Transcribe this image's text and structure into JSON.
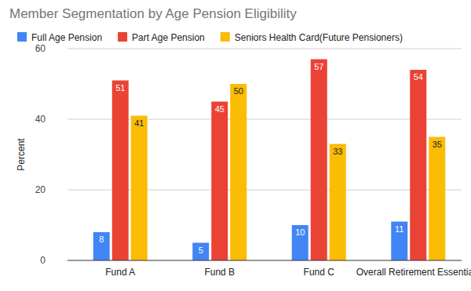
{
  "chart_data": {
    "type": "bar",
    "title": "Member Segmentation by Age Pension Eligibility",
    "y_label": "Percent",
    "categories": [
      "Fund A",
      "Fund B",
      "Fund C",
      "Overall Retirement Essentials"
    ],
    "series": [
      {
        "name": "Full Age Pension",
        "color": "#4285f4",
        "values": [
          8,
          5,
          10,
          11
        ]
      },
      {
        "name": "Part Age Pension",
        "color": "#ea4335",
        "values": [
          51,
          45,
          57,
          54
        ]
      },
      {
        "name": "Seniors Health Card(Future Pensioners)",
        "color": "#fbbc04",
        "values": [
          41,
          50,
          33,
          35
        ]
      }
    ],
    "ylim": [
      0,
      60
    ],
    "yticks": [
      0,
      20,
      40,
      60
    ],
    "grid": true,
    "legend": "top",
    "data_labels": true
  }
}
